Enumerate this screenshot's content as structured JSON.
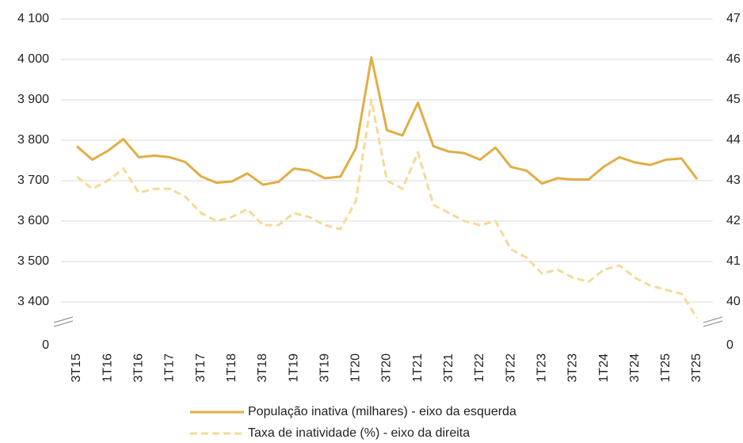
{
  "chart_data": {
    "type": "line",
    "categories": [
      "3T15",
      null,
      "1T16",
      null,
      "3T16",
      null,
      "1T17",
      null,
      "3T17",
      null,
      "1T18",
      null,
      "3T18",
      null,
      "1T19",
      null,
      "3T19",
      null,
      "1T20",
      null,
      "3T20",
      null,
      "1T21",
      null,
      "3T21",
      null,
      "1T22",
      null,
      "3T22",
      null,
      "1T23",
      null,
      "3T23",
      null,
      "1T24",
      null,
      "3T24",
      null,
      "1T25",
      null,
      "3T25"
    ],
    "series": [
      {
        "name": "População inativa (milhares) - eixo da esquerda",
        "color": "#e0ae45",
        "line_style": "solid",
        "values": [
          3785,
          3752,
          3774,
          3803,
          3758,
          3762,
          3758,
          3746,
          3711,
          3695,
          3698,
          3718,
          3690,
          3697,
          3730,
          3725,
          3706,
          3710,
          3780,
          4005,
          3825,
          3812,
          3893,
          3785,
          3772,
          3768,
          3752,
          3782,
          3734,
          3725,
          3693,
          3706,
          3703,
          3703,
          3735,
          3758,
          3745,
          3739,
          3752,
          3755,
          3704
        ]
      },
      {
        "name": "Taxa de inatividade (%) - eixo da direita",
        "color": "#f5d999",
        "line_style": "dashed",
        "axis": "y2",
        "values": [
          43.1,
          42.8,
          43.0,
          43.3,
          42.7,
          42.8,
          42.8,
          42.6,
          42.2,
          42.0,
          42.1,
          42.3,
          41.9,
          41.9,
          42.2,
          42.1,
          41.9,
          41.8,
          42.5,
          45.0,
          43.0,
          42.8,
          43.7,
          42.4,
          42.2,
          42.0,
          41.9,
          42.0,
          41.3,
          41.1,
          40.7,
          40.8,
          40.6,
          40.5,
          40.8,
          40.9,
          40.6,
          40.4,
          40.3,
          40.2,
          39.6
        ]
      }
    ],
    "ylim": [
      3400,
      4100
    ],
    "yticks": [
      0,
      {
        "value": 3400,
        "label": "3 400"
      },
      {
        "value": 3500,
        "label": "3 500"
      },
      {
        "value": 3600,
        "label": "3 600"
      },
      {
        "value": 3700,
        "label": "3 700"
      },
      {
        "value": 3800,
        "label": "3 800"
      },
      {
        "value": 3900,
        "label": "3 900"
      },
      {
        "value": 4000,
        "label": "4 000"
      },
      {
        "value": 4100,
        "label": "4 100"
      }
    ],
    "y2lim": [
      40,
      47
    ],
    "y2ticks": [
      0,
      40,
      41,
      42,
      43,
      44,
      45,
      46,
      47
    ],
    "grid": true,
    "axis_break": true,
    "legend": "bottom"
  }
}
